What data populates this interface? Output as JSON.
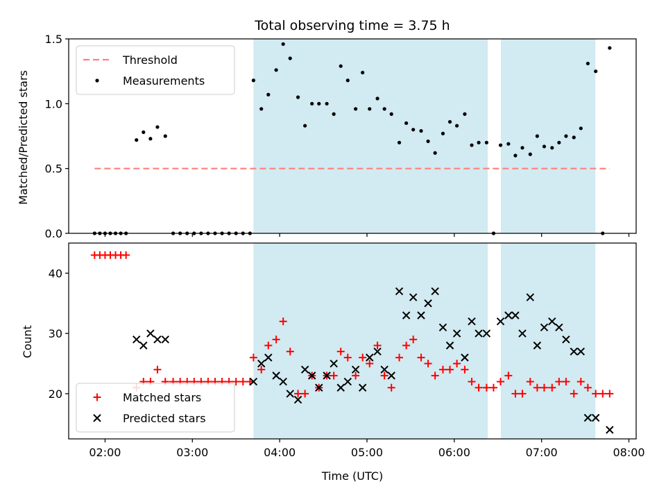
{
  "chart_data": {
    "type": "scatter",
    "title": "Total observing time = 3.75 h",
    "xlabel": "Time (UTC)",
    "x_unit": "hours UTC",
    "xlim": [
      "01:35",
      "08:05"
    ],
    "xticks": [
      {
        "value": 2,
        "label": "02:00"
      },
      {
        "value": 3,
        "label": "03:00"
      },
      {
        "value": 4,
        "label": "04:00"
      },
      {
        "value": 5,
        "label": "05:00"
      },
      {
        "value": 6,
        "label": "06:00"
      },
      {
        "value": 7,
        "label": "07:00"
      },
      {
        "value": 8,
        "label": "08:00"
      }
    ],
    "shaded_intervals": [
      [
        "03:42",
        "06:23"
      ],
      [
        "06:32",
        "07:37"
      ]
    ],
    "shade_color": "#add8e6",
    "panels": [
      {
        "ylabel": "Matched/Predicted stars",
        "ylim": [
          0,
          1.5
        ],
        "yticks": [
          {
            "value": 0,
            "label": "0.0"
          },
          {
            "value": 0.5,
            "label": "0.5"
          },
          {
            "value": 1.0,
            "label": "1.0"
          },
          {
            "value": 1.5,
            "label": "1.5"
          }
        ],
        "legend_position": "upper-left",
        "series": [
          {
            "name": "Threshold",
            "kind": "dashed-line",
            "color": "#ff7f7f",
            "points": [
              [
                1.88,
                0.5
              ],
              [
                7.78,
                0.5
              ]
            ]
          },
          {
            "name": "Measurements",
            "kind": "dot",
            "color": "#000000",
            "points": [
              [
                1.88,
                0
              ],
              [
                1.94,
                0
              ],
              [
                2.0,
                0
              ],
              [
                2.06,
                0
              ],
              [
                2.12,
                0
              ],
              [
                2.18,
                0
              ],
              [
                2.24,
                0
              ],
              [
                2.36,
                0.72
              ],
              [
                2.44,
                0.78
              ],
              [
                2.52,
                0.73
              ],
              [
                2.6,
                0.82
              ],
              [
                2.69,
                0.75
              ],
              [
                2.78,
                0
              ],
              [
                2.86,
                0
              ],
              [
                2.94,
                0
              ],
              [
                3.02,
                0
              ],
              [
                3.1,
                0
              ],
              [
                3.18,
                0
              ],
              [
                3.26,
                0
              ],
              [
                3.34,
                0
              ],
              [
                3.42,
                0
              ],
              [
                3.5,
                0
              ],
              [
                3.58,
                0
              ],
              [
                3.66,
                0
              ],
              [
                3.7,
                1.18
              ],
              [
                3.79,
                0.96
              ],
              [
                3.87,
                1.07
              ],
              [
                3.96,
                1.26
              ],
              [
                4.04,
                1.46
              ],
              [
                4.12,
                1.35
              ],
              [
                4.21,
                1.05
              ],
              [
                4.29,
                0.83
              ],
              [
                4.37,
                1.0
              ],
              [
                4.45,
                1.0
              ],
              [
                4.54,
                1.0
              ],
              [
                4.62,
                0.92
              ],
              [
                4.7,
                1.29
              ],
              [
                4.78,
                1.18
              ],
              [
                4.87,
                0.96
              ],
              [
                4.95,
                1.24
              ],
              [
                5.03,
                0.96
              ],
              [
                5.12,
                1.04
              ],
              [
                5.2,
                0.96
              ],
              [
                5.28,
                0.92
              ],
              [
                5.37,
                0.7
              ],
              [
                5.45,
                0.85
              ],
              [
                5.53,
                0.8
              ],
              [
                5.62,
                0.79
              ],
              [
                5.7,
                0.71
              ],
              [
                5.78,
                0.62
              ],
              [
                5.87,
                0.77
              ],
              [
                5.95,
                0.86
              ],
              [
                6.03,
                0.83
              ],
              [
                6.12,
                0.92
              ],
              [
                6.2,
                0.68
              ],
              [
                6.28,
                0.7
              ],
              [
                6.37,
                0.7
              ],
              [
                6.45,
                0.0
              ],
              [
                6.53,
                0.68
              ],
              [
                6.62,
                0.69
              ],
              [
                6.7,
                0.6
              ],
              [
                6.78,
                0.66
              ],
              [
                6.87,
                0.61
              ],
              [
                6.95,
                0.75
              ],
              [
                7.03,
                0.67
              ],
              [
                7.12,
                0.66
              ],
              [
                7.2,
                0.7
              ],
              [
                7.28,
                0.75
              ],
              [
                7.37,
                0.74
              ],
              [
                7.45,
                0.81
              ],
              [
                7.53,
                1.31
              ],
              [
                7.62,
                1.25
              ],
              [
                7.7,
                0.0
              ],
              [
                7.78,
                1.43
              ]
            ]
          }
        ]
      },
      {
        "ylabel": "Count",
        "ylim": [
          12.5,
          45
        ],
        "yticks": [
          {
            "value": 20,
            "label": "20"
          },
          {
            "value": 30,
            "label": "30"
          },
          {
            "value": 40,
            "label": "40"
          }
        ],
        "legend_position": "lower-left",
        "series": [
          {
            "name": "Matched stars",
            "kind": "plus",
            "color": "#ff0000",
            "points": [
              [
                1.88,
                43
              ],
              [
                1.94,
                43
              ],
              [
                2.0,
                43
              ],
              [
                2.06,
                43
              ],
              [
                2.12,
                43
              ],
              [
                2.18,
                43
              ],
              [
                2.24,
                43
              ],
              [
                2.36,
                21
              ],
              [
                2.44,
                22
              ],
              [
                2.52,
                22
              ],
              [
                2.6,
                24
              ],
              [
                2.69,
                22
              ],
              [
                2.78,
                22
              ],
              [
                2.86,
                22
              ],
              [
                2.94,
                22
              ],
              [
                3.02,
                22
              ],
              [
                3.1,
                22
              ],
              [
                3.18,
                22
              ],
              [
                3.26,
                22
              ],
              [
                3.34,
                22
              ],
              [
                3.42,
                22
              ],
              [
                3.5,
                22
              ],
              [
                3.58,
                22
              ],
              [
                3.66,
                22
              ],
              [
                3.7,
                26
              ],
              [
                3.79,
                24
              ],
              [
                3.87,
                28
              ],
              [
                3.96,
                29
              ],
              [
                4.04,
                32
              ],
              [
                4.12,
                27
              ],
              [
                4.21,
                20
              ],
              [
                4.29,
                20
              ],
              [
                4.37,
                23
              ],
              [
                4.45,
                21
              ],
              [
                4.54,
                23
              ],
              [
                4.62,
                23
              ],
              [
                4.7,
                27
              ],
              [
                4.78,
                26
              ],
              [
                4.87,
                23
              ],
              [
                4.95,
                26
              ],
              [
                5.03,
                25
              ],
              [
                5.12,
                28
              ],
              [
                5.2,
                23
              ],
              [
                5.28,
                21
              ],
              [
                5.37,
                26
              ],
              [
                5.45,
                28
              ],
              [
                5.53,
                29
              ],
              [
                5.62,
                26
              ],
              [
                5.7,
                25
              ],
              [
                5.78,
                23
              ],
              [
                5.87,
                24
              ],
              [
                5.95,
                24
              ],
              [
                6.03,
                25
              ],
              [
                6.12,
                24
              ],
              [
                6.2,
                22
              ],
              [
                6.28,
                21
              ],
              [
                6.37,
                21
              ],
              [
                6.45,
                21
              ],
              [
                6.53,
                22
              ],
              [
                6.62,
                23
              ],
              [
                6.7,
                20
              ],
              [
                6.78,
                20
              ],
              [
                6.87,
                22
              ],
              [
                6.95,
                21
              ],
              [
                7.03,
                21
              ],
              [
                7.12,
                21
              ],
              [
                7.2,
                22
              ],
              [
                7.28,
                22
              ],
              [
                7.37,
                20
              ],
              [
                7.45,
                22
              ],
              [
                7.53,
                21
              ],
              [
                7.62,
                20
              ],
              [
                7.7,
                20
              ],
              [
                7.78,
                20
              ]
            ]
          },
          {
            "name": "Predicted stars",
            "kind": "cross",
            "color": "#000000",
            "points": [
              [
                2.36,
                29
              ],
              [
                2.44,
                28
              ],
              [
                2.52,
                30
              ],
              [
                2.6,
                29
              ],
              [
                2.69,
                29
              ],
              [
                3.7,
                22
              ],
              [
                3.79,
                25
              ],
              [
                3.87,
                26
              ],
              [
                3.96,
                23
              ],
              [
                4.04,
                22
              ],
              [
                4.12,
                20
              ],
              [
                4.21,
                19
              ],
              [
                4.29,
                24
              ],
              [
                4.37,
                23
              ],
              [
                4.45,
                21
              ],
              [
                4.54,
                23
              ],
              [
                4.62,
                25
              ],
              [
                4.7,
                21
              ],
              [
                4.78,
                22
              ],
              [
                4.87,
                24
              ],
              [
                4.95,
                21
              ],
              [
                5.03,
                26
              ],
              [
                5.12,
                27
              ],
              [
                5.2,
                24
              ],
              [
                5.28,
                23
              ],
              [
                5.37,
                37
              ],
              [
                5.45,
                33
              ],
              [
                5.53,
                36
              ],
              [
                5.62,
                33
              ],
              [
                5.7,
                35
              ],
              [
                5.78,
                37
              ],
              [
                5.87,
                31
              ],
              [
                5.95,
                28
              ],
              [
                6.03,
                30
              ],
              [
                6.12,
                26
              ],
              [
                6.2,
                32
              ],
              [
                6.28,
                30
              ],
              [
                6.37,
                30
              ],
              [
                6.53,
                32
              ],
              [
                6.62,
                33
              ],
              [
                6.7,
                33
              ],
              [
                6.78,
                30
              ],
              [
                6.87,
                36
              ],
              [
                6.95,
                28
              ],
              [
                7.03,
                31
              ],
              [
                7.12,
                32
              ],
              [
                7.2,
                31
              ],
              [
                7.28,
                29
              ],
              [
                7.37,
                27
              ],
              [
                7.45,
                27
              ],
              [
                7.53,
                16
              ],
              [
                7.62,
                16
              ],
              [
                7.78,
                14
              ]
            ]
          }
        ]
      }
    ]
  }
}
